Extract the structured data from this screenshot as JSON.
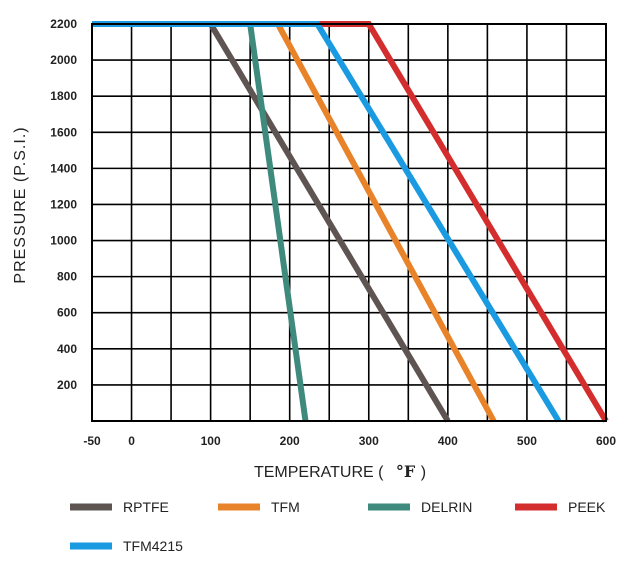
{
  "chart_data": {
    "type": "line",
    "title": "",
    "xlabel": "TEMPERATURE (",
    "xunit": "°F",
    "xunit_close": ")",
    "ylabel": "PRESSURE (P.S.I.)",
    "xlim": [
      -50,
      600
    ],
    "ylim": [
      0,
      2200
    ],
    "x_ticks": [
      -50,
      0,
      100,
      200,
      300,
      400,
      500,
      600
    ],
    "y_ticks": [
      200,
      400,
      600,
      800,
      1000,
      1200,
      1400,
      1600,
      1800,
      2000,
      2200
    ],
    "grid": true,
    "legend_position": "bottom",
    "series": [
      {
        "name": "RPTFE",
        "color": "#5e5552",
        "x": [
          -50,
          100,
          400
        ],
        "y": [
          2200,
          2200,
          0
        ]
      },
      {
        "name": "TFM",
        "color": "#e8832a",
        "x": [
          -50,
          185,
          458
        ],
        "y": [
          2200,
          2200,
          0
        ]
      },
      {
        "name": "DELRIN",
        "color": "#3e8a7c",
        "x": [
          -50,
          150,
          220
        ],
        "y": [
          2200,
          2200,
          0
        ]
      },
      {
        "name": "PEEK",
        "color": "#d42d2d",
        "x": [
          -50,
          300,
          600
        ],
        "y": [
          2200,
          2200,
          0
        ]
      },
      {
        "name": "TFM4215",
        "color": "#1a9ae0",
        "x": [
          -50,
          235,
          540
        ],
        "y": [
          2200,
          2200,
          0
        ]
      }
    ]
  }
}
